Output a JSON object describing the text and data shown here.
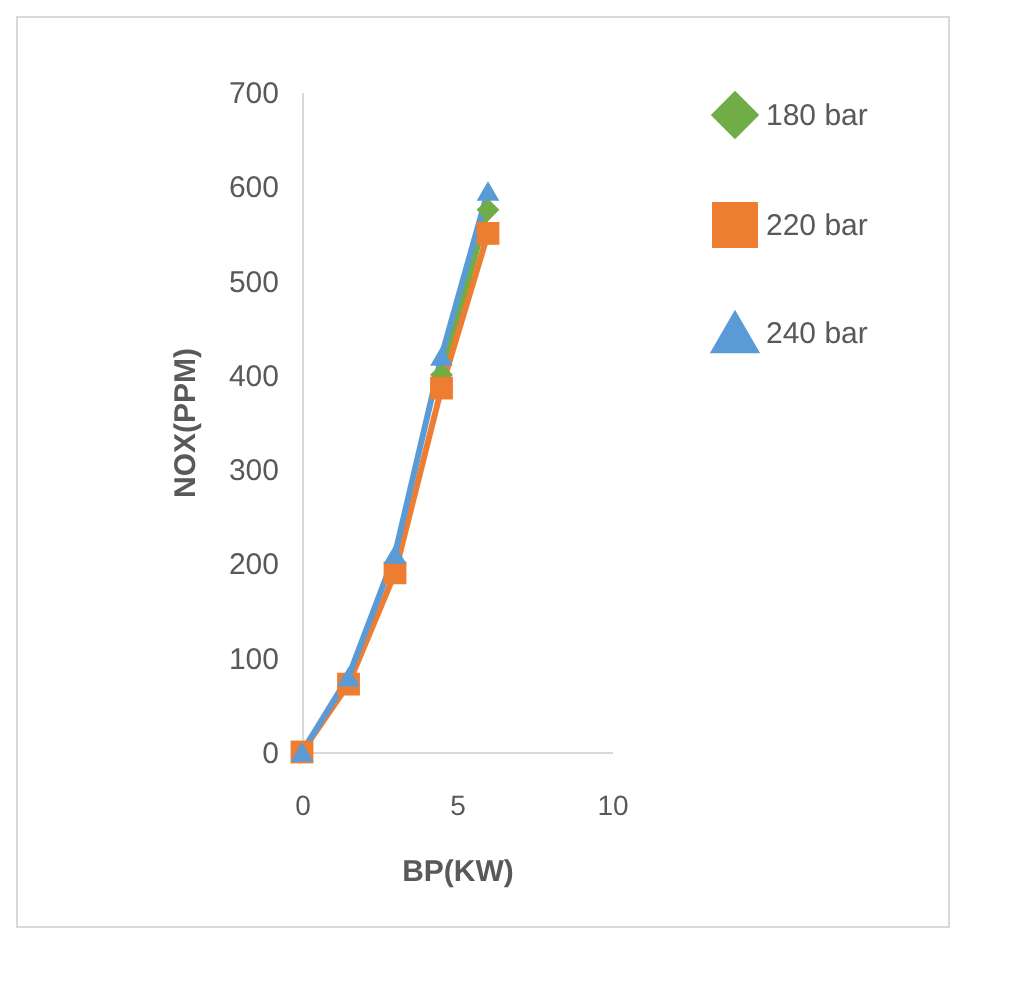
{
  "chart_data": {
    "type": "line",
    "xlabel": "BP(KW)",
    "ylabel": "NOX(PPM)",
    "x": [
      0,
      1.5,
      3,
      4.5,
      6
    ],
    "series": [
      {
        "name": "180 bar",
        "color": "#70ad47",
        "marker": "diamond",
        "values": [
          null,
          null,
          null,
          400,
          575
        ]
      },
      {
        "name": "220 bar",
        "color": "#ed7d31",
        "marker": "square",
        "values": [
          0,
          72,
          190,
          386,
          550
        ]
      },
      {
        "name": "240 bar",
        "color": "#5b9bd5",
        "marker": "triangle",
        "values": [
          0,
          80,
          210,
          420,
          595
        ]
      }
    ],
    "xlim": [
      0,
      10
    ],
    "xticks": [
      0,
      5,
      10
    ],
    "ylim": [
      0,
      700
    ],
    "yticks": [
      0,
      100,
      200,
      300,
      400,
      500,
      600,
      700
    ],
    "grid": false,
    "legend": "right",
    "line_style": "solid"
  }
}
